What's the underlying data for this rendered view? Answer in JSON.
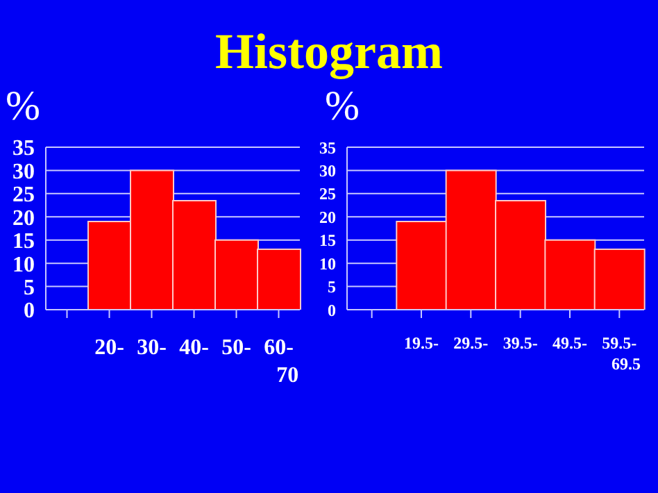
{
  "chart_data": [
    {
      "type": "bar",
      "title": "Histogram",
      "ylabel": "%",
      "categories": [
        null,
        "20-",
        "30-",
        "40-",
        "50-",
        "60-70"
      ],
      "values": [
        null,
        19,
        30,
        23.5,
        15,
        13
      ],
      "color": "#ff0000",
      "ylim": [
        0,
        35
      ],
      "yticks": [
        0,
        5,
        10,
        15,
        20,
        25,
        30,
        35
      ],
      "grid": "y"
    },
    {
      "type": "bar",
      "ylabel": "%",
      "categories": [
        null,
        "19.5-",
        "29.5-",
        "39.5-",
        "49.5-",
        "59.5-69.5"
      ],
      "values": [
        null,
        19,
        30,
        23.5,
        15,
        13
      ],
      "color": "#ff0000",
      "ylim": [
        0,
        35
      ],
      "yticks": [
        0,
        5,
        10,
        15,
        20,
        25,
        30,
        35
      ],
      "grid": "y"
    }
  ]
}
